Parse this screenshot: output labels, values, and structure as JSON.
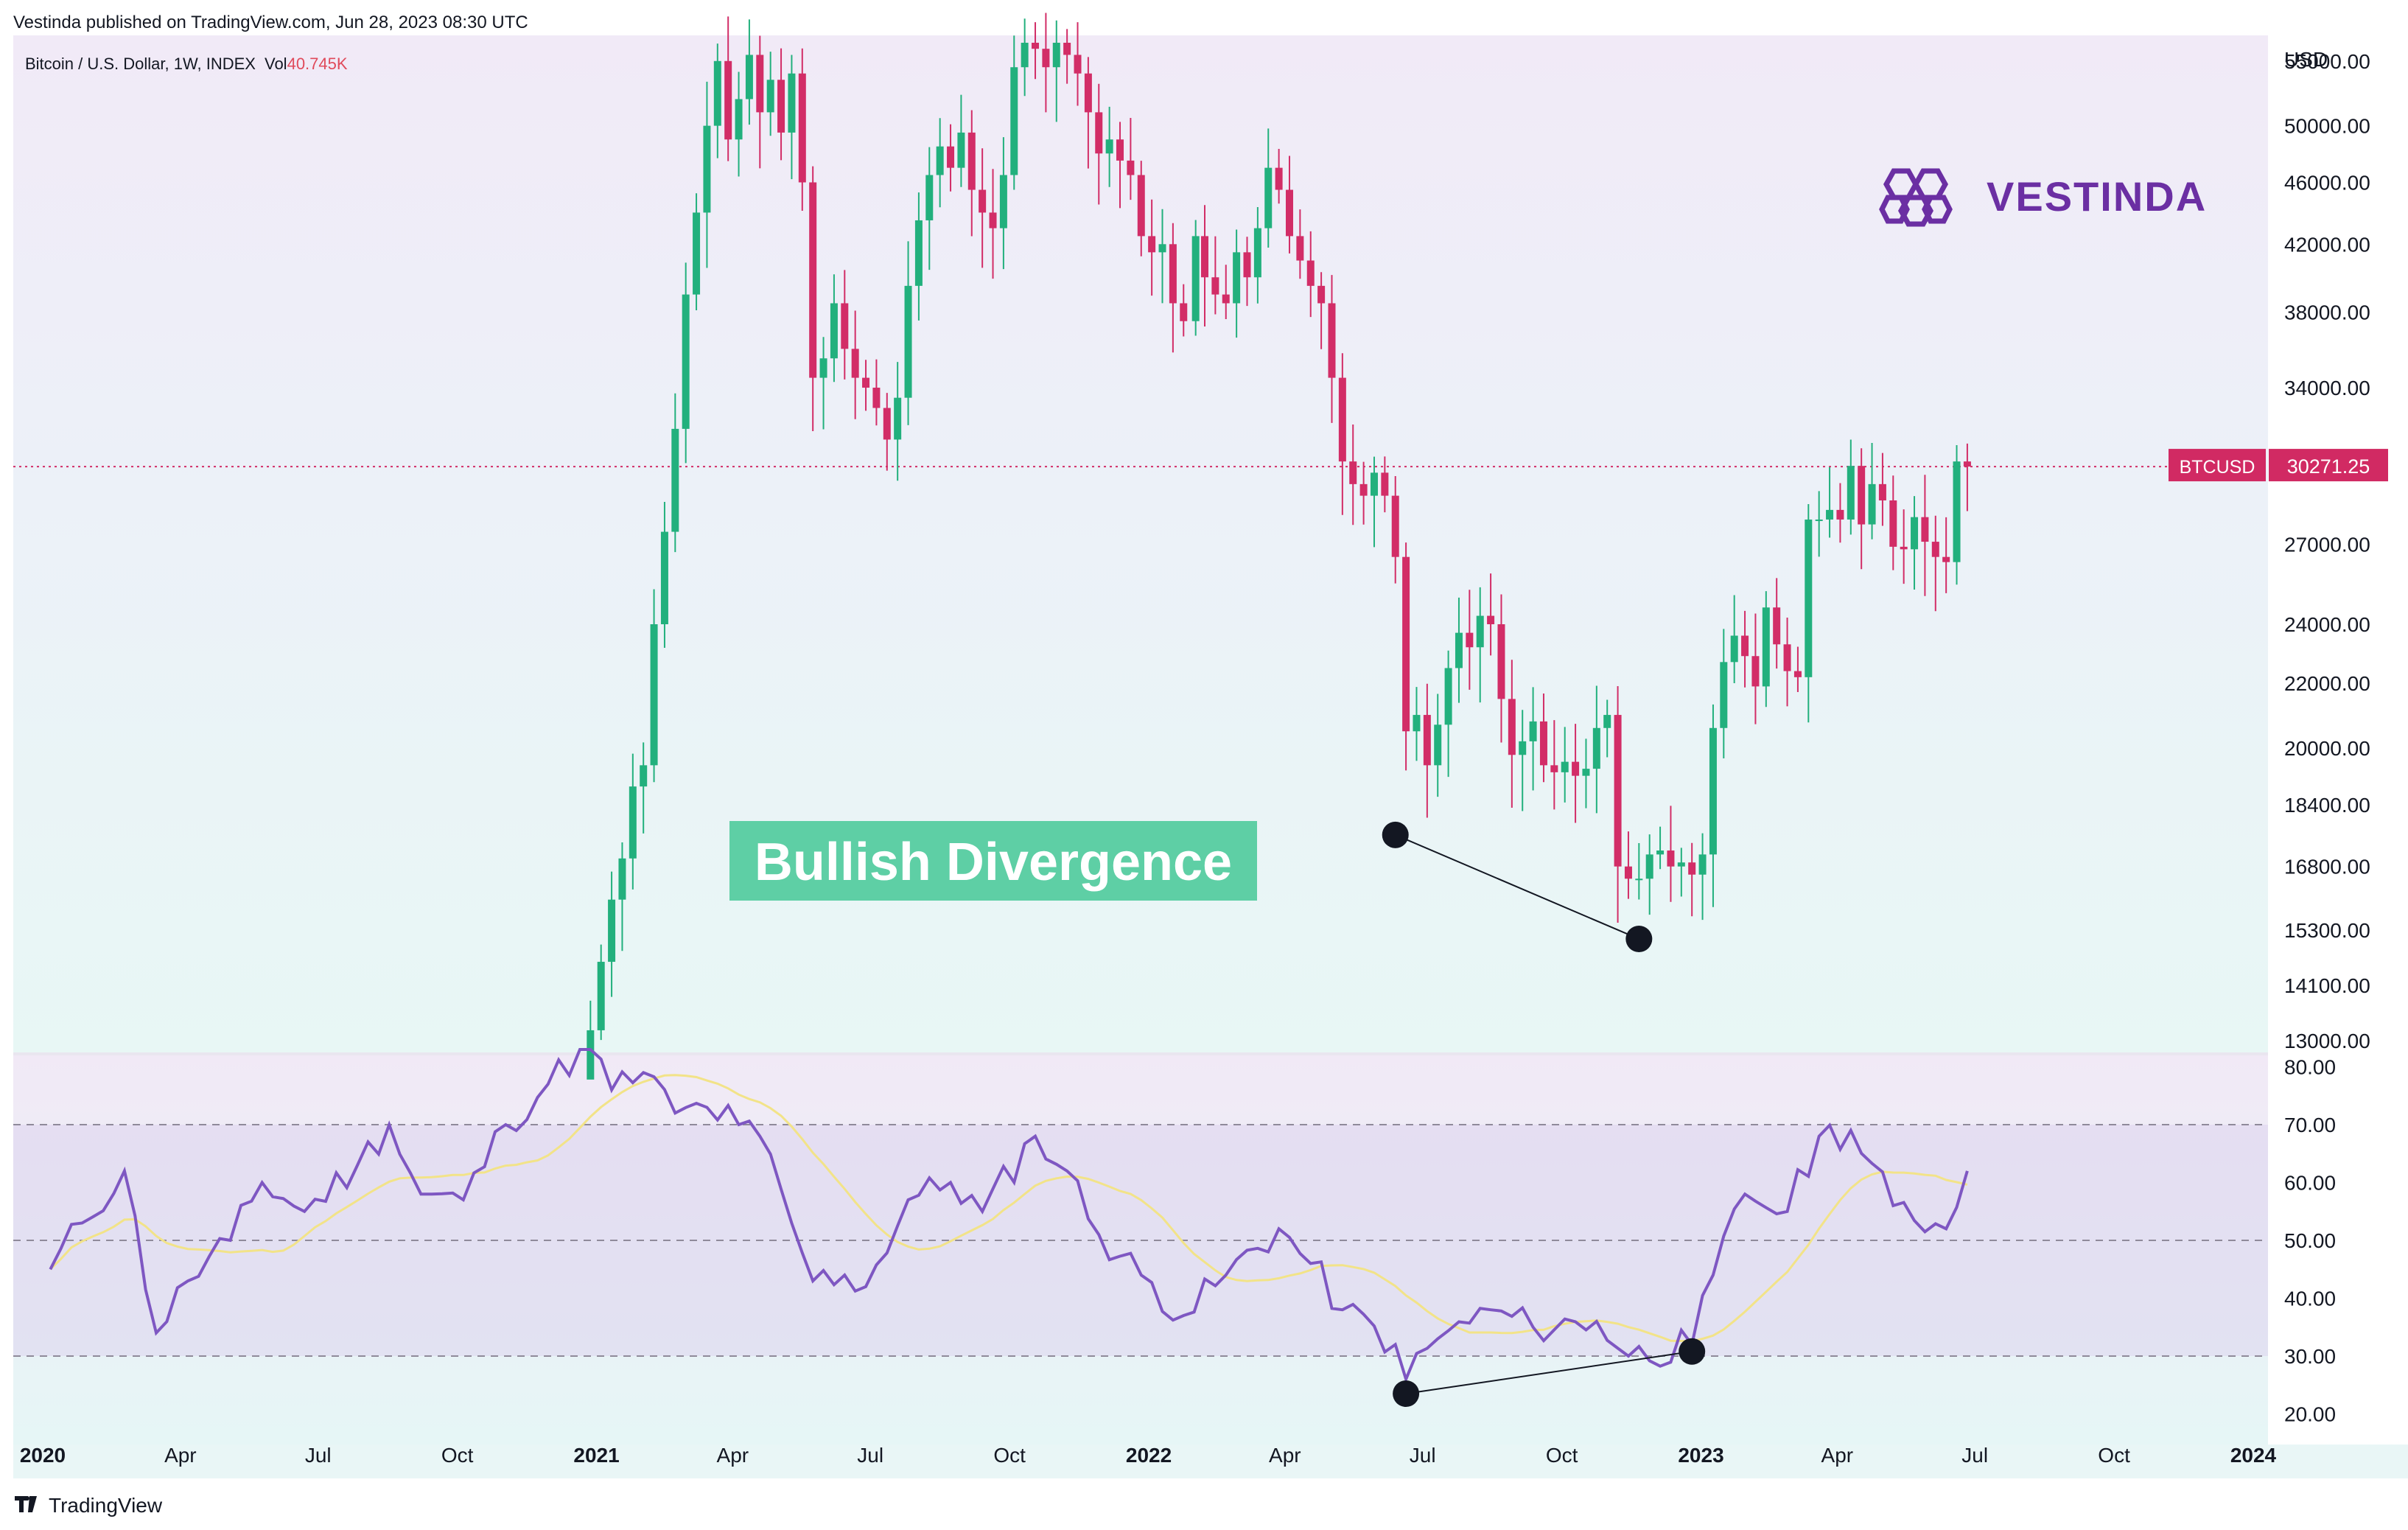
{
  "header": {
    "published": "Vestinda published on TradingView.com, Jun 28, 2023 08:30 UTC"
  },
  "symbol_info": {
    "text": "Bitcoin / U.S. Dollar, 1W, INDEX",
    "vol_label": "Vol",
    "vol_value": "40.745K"
  },
  "currency": "USD",
  "logo": {
    "text": "VESTINDA"
  },
  "annotation": {
    "text": "Bullish Divergence"
  },
  "price_tag": {
    "symbol": "BTCUSD",
    "value": "30271.25"
  },
  "footer": {
    "brand": "TradingView"
  },
  "colors": {
    "up": "#22b07d",
    "down": "#d22d67",
    "rsi": "#7e57c2",
    "rsi_ma": "#f2e388",
    "label_bg": "#5ecfa5",
    "tag_bg": "#d12a63",
    "logo": "#6b2fa3"
  },
  "chart_data": [
    {
      "type": "candlestick",
      "title": "Bitcoin / U.S. Dollar, 1W, INDEX",
      "y_scale": "log",
      "ylim": [
        13000,
        56500
      ],
      "y_ticks": [
        "55000.00",
        "50000.00",
        "46000.00",
        "42000.00",
        "38000.00",
        "34000.00",
        "27000.00",
        "24000.00",
        "22000.00",
        "20000.00",
        "18400.00",
        "16800.00",
        "15300.00",
        "14100.00",
        "13000.00"
      ],
      "x_ticks": [
        {
          "label": "2020",
          "date": "2020-01-01",
          "bold": true
        },
        {
          "label": "Apr",
          "date": "2020-04-01"
        },
        {
          "label": "Jul",
          "date": "2020-07-01"
        },
        {
          "label": "Oct",
          "date": "2020-10-01"
        },
        {
          "label": "2021",
          "date": "2021-01-01",
          "bold": true
        },
        {
          "label": "Apr",
          "date": "2021-04-01"
        },
        {
          "label": "Jul",
          "date": "2021-07-01"
        },
        {
          "label": "Oct",
          "date": "2021-10-01"
        },
        {
          "label": "2022",
          "date": "2022-01-01",
          "bold": true
        },
        {
          "label": "Apr",
          "date": "2022-04-01"
        },
        {
          "label": "Jul",
          "date": "2022-07-01"
        },
        {
          "label": "Oct",
          "date": "2022-10-01"
        },
        {
          "label": "2023",
          "date": "2023-01-01",
          "bold": true
        },
        {
          "label": "Apr",
          "date": "2023-04-01"
        },
        {
          "label": "Jul",
          "date": "2023-07-01"
        },
        {
          "label": "Oct",
          "date": "2023-10-01"
        },
        {
          "label": "2024",
          "date": "2024-01-01",
          "bold": true
        }
      ],
      "last_price": 30271.25,
      "divergence_line": [
        [
          "2022-06-13",
          17600
        ],
        [
          "2022-11-21",
          15100
        ]
      ],
      "close_series": [
        [
          "2020-12-28",
          13200
        ],
        [
          "2021-01-04",
          14600
        ],
        [
          "2021-01-11",
          16000
        ],
        [
          "2021-01-18",
          17000
        ],
        [
          "2021-01-25",
          18900
        ],
        [
          "2021-02-01",
          19500
        ],
        [
          "2021-02-08",
          24000
        ],
        [
          "2021-02-15",
          27500
        ],
        [
          "2021-02-22",
          32000
        ],
        [
          "2021-03-01",
          39000
        ],
        [
          "2021-03-08",
          44000
        ],
        [
          "2021-03-15",
          50000
        ],
        [
          "2021-03-22",
          55000
        ],
        [
          "2021-03-29",
          49000
        ],
        [
          "2021-04-05",
          52000
        ],
        [
          "2021-04-12",
          55500
        ],
        [
          "2021-04-19",
          51000
        ],
        [
          "2021-04-26",
          53500
        ],
        [
          "2021-05-03",
          49500
        ],
        [
          "2021-05-10",
          54000
        ],
        [
          "2021-05-17",
          46000
        ],
        [
          "2021-05-24",
          34500
        ],
        [
          "2021-05-31",
          35500
        ],
        [
          "2021-06-07",
          38500
        ],
        [
          "2021-06-14",
          36000
        ],
        [
          "2021-06-21",
          34500
        ],
        [
          "2021-06-28",
          34000
        ],
        [
          "2021-07-05",
          33000
        ],
        [
          "2021-07-12",
          31500
        ],
        [
          "2021-07-19",
          33500
        ],
        [
          "2021-07-26",
          39500
        ],
        [
          "2021-08-02",
          43500
        ],
        [
          "2021-08-09",
          46500
        ],
        [
          "2021-08-16",
          48500
        ],
        [
          "2021-08-23",
          47000
        ],
        [
          "2021-08-30",
          49500
        ],
        [
          "2021-09-06",
          45500
        ],
        [
          "2021-09-13",
          44000
        ],
        [
          "2021-09-20",
          43000
        ],
        [
          "2021-09-27",
          46500
        ],
        [
          "2021-10-04",
          54500
        ],
        [
          "2021-10-11",
          56500
        ],
        [
          "2021-10-18",
          56000
        ],
        [
          "2021-10-25",
          54500
        ],
        [
          "2021-11-01",
          56500
        ],
        [
          "2021-11-08",
          55500
        ],
        [
          "2021-11-15",
          54000
        ],
        [
          "2021-11-22",
          51000
        ],
        [
          "2021-11-29",
          48000
        ],
        [
          "2021-12-06",
          49000
        ],
        [
          "2021-12-13",
          47500
        ],
        [
          "2021-12-20",
          46500
        ],
        [
          "2021-12-27",
          42500
        ],
        [
          "2022-01-03",
          41500
        ],
        [
          "2022-01-10",
          42000
        ],
        [
          "2022-01-17",
          38500
        ],
        [
          "2022-01-24",
          37500
        ],
        [
          "2022-02-01",
          42500
        ],
        [
          "2022-02-07",
          40000
        ],
        [
          "2022-02-14",
          39000
        ],
        [
          "2022-02-21",
          38500
        ],
        [
          "2022-02-28",
          41500
        ],
        [
          "2022-03-07",
          40000
        ],
        [
          "2022-03-14",
          43000
        ],
        [
          "2022-03-21",
          47000
        ],
        [
          "2022-03-28",
          45500
        ],
        [
          "2022-04-04",
          42500
        ],
        [
          "2022-04-11",
          41000
        ],
        [
          "2022-04-18",
          39500
        ],
        [
          "2022-04-25",
          38500
        ],
        [
          "2022-05-02",
          34500
        ],
        [
          "2022-05-09",
          30500
        ],
        [
          "2022-05-16",
          29500
        ],
        [
          "2022-05-23",
          29000
        ],
        [
          "2022-05-30",
          30000
        ],
        [
          "2022-06-06",
          29000
        ],
        [
          "2022-06-13",
          26500
        ],
        [
          "2022-06-20",
          20500
        ],
        [
          "2022-06-27",
          21000
        ],
        [
          "2022-07-04",
          19500
        ],
        [
          "2022-07-11",
          20700
        ],
        [
          "2022-07-18",
          22500
        ],
        [
          "2022-07-25",
          23700
        ],
        [
          "2022-08-01",
          23200
        ],
        [
          "2022-08-08",
          24300
        ],
        [
          "2022-08-15",
          24000
        ],
        [
          "2022-08-22",
          21500
        ],
        [
          "2022-08-29",
          19800
        ],
        [
          "2022-09-05",
          20200
        ],
        [
          "2022-09-12",
          20800
        ],
        [
          "2022-09-19",
          19500
        ],
        [
          "2022-09-26",
          19300
        ],
        [
          "2022-10-03",
          19600
        ],
        [
          "2022-10-10",
          19200
        ],
        [
          "2022-10-17",
          19400
        ],
        [
          "2022-10-24",
          20600
        ],
        [
          "2022-10-31",
          21000
        ],
        [
          "2022-11-07",
          16800
        ],
        [
          "2022-11-14",
          16500
        ],
        [
          "2022-11-21",
          16500
        ],
        [
          "2022-11-28",
          17100
        ],
        [
          "2022-12-05",
          17200
        ],
        [
          "2022-12-12",
          16800
        ],
        [
          "2022-12-19",
          16900
        ],
        [
          "2022-12-26",
          16600
        ],
        [
          "2023-01-02",
          17100
        ],
        [
          "2023-01-09",
          20600
        ],
        [
          "2023-01-16",
          22700
        ],
        [
          "2023-01-23",
          23600
        ],
        [
          "2023-01-30",
          22900
        ],
        [
          "2023-02-06",
          21900
        ],
        [
          "2023-02-13",
          24600
        ],
        [
          "2023-02-20",
          23300
        ],
        [
          "2023-02-27",
          22400
        ],
        [
          "2023-03-06",
          22200
        ],
        [
          "2023-03-13",
          28000
        ],
        [
          "2023-03-20",
          28000
        ],
        [
          "2023-03-27",
          28400
        ],
        [
          "2023-04-03",
          28000
        ],
        [
          "2023-04-10",
          30300
        ],
        [
          "2023-04-17",
          27800
        ],
        [
          "2023-04-24",
          29500
        ],
        [
          "2023-05-01",
          28800
        ],
        [
          "2023-05-08",
          26900
        ],
        [
          "2023-05-15",
          26800
        ],
        [
          "2023-05-22",
          28100
        ],
        [
          "2023-05-29",
          27100
        ],
        [
          "2023-06-05",
          26500
        ],
        [
          "2023-06-12",
          26300
        ],
        [
          "2023-06-19",
          30500
        ],
        [
          "2023-06-26",
          30271
        ]
      ]
    },
    {
      "type": "line",
      "title": "RSI",
      "ylim": [
        15,
        82
      ],
      "y_ticks": [
        "80.00",
        "70.00",
        "60.00",
        "50.00",
        "40.00",
        "30.00",
        "20.00"
      ],
      "bands": {
        "upper": 70,
        "middle": 50,
        "lower": 30
      },
      "series": [],
      "divergence_line": [
        [
          "2022-06-20",
          23.5
        ],
        [
          "2022-12-26",
          30.8
        ]
      ],
      "key_points": [
        [
          "2020-01-06",
          45
        ],
        [
          "2020-01-27",
          53
        ],
        [
          "2020-02-24",
          62
        ],
        [
          "2020-03-16",
          34
        ],
        [
          "2020-04-06",
          43
        ],
        [
          "2020-05-04",
          50
        ],
        [
          "2020-05-25",
          60
        ],
        [
          "2020-06-22",
          55
        ],
        [
          "2020-07-27",
          63
        ],
        [
          "2020-08-17",
          70
        ],
        [
          "2020-09-07",
          58
        ],
        [
          "2020-10-05",
          57
        ],
        [
          "2020-11-02",
          70
        ],
        [
          "2020-11-30",
          77
        ],
        [
          "2020-12-28",
          85
        ],
        [
          "2021-01-11",
          76
        ],
        [
          "2021-02-01",
          79
        ],
        [
          "2021-02-22",
          72
        ],
        [
          "2021-03-15",
          73
        ],
        [
          "2021-04-05",
          70
        ],
        [
          "2021-04-19",
          68
        ],
        [
          "2021-05-10",
          53
        ],
        [
          "2021-05-24",
          43
        ],
        [
          "2021-06-14",
          44
        ],
        [
          "2021-06-28",
          42
        ],
        [
          "2021-07-26",
          57
        ],
        [
          "2021-08-23",
          60
        ],
        [
          "2021-09-13",
          55
        ],
        [
          "2021-10-18",
          68
        ],
        [
          "2021-11-08",
          62
        ],
        [
          "2021-11-29",
          51
        ],
        [
          "2021-12-27",
          44
        ],
        [
          "2022-01-24",
          37
        ],
        [
          "2022-02-21",
          44
        ],
        [
          "2022-03-28",
          52
        ],
        [
          "2022-04-18",
          46
        ],
        [
          "2022-05-09",
          38
        ],
        [
          "2022-06-13",
          32
        ],
        [
          "2022-06-20",
          26
        ],
        [
          "2022-07-11",
          33
        ],
        [
          "2022-08-15",
          38
        ],
        [
          "2022-09-12",
          35
        ],
        [
          "2022-10-24",
          36
        ],
        [
          "2022-11-14",
          30
        ],
        [
          "2022-12-26",
          32
        ],
        [
          "2023-01-09",
          44
        ],
        [
          "2023-01-30",
          58
        ],
        [
          "2023-02-27",
          55
        ],
        [
          "2023-03-20",
          68
        ],
        [
          "2023-04-10",
          69
        ],
        [
          "2023-05-08",
          56
        ],
        [
          "2023-06-12",
          52
        ],
        [
          "2023-06-26",
          62
        ]
      ]
    }
  ]
}
